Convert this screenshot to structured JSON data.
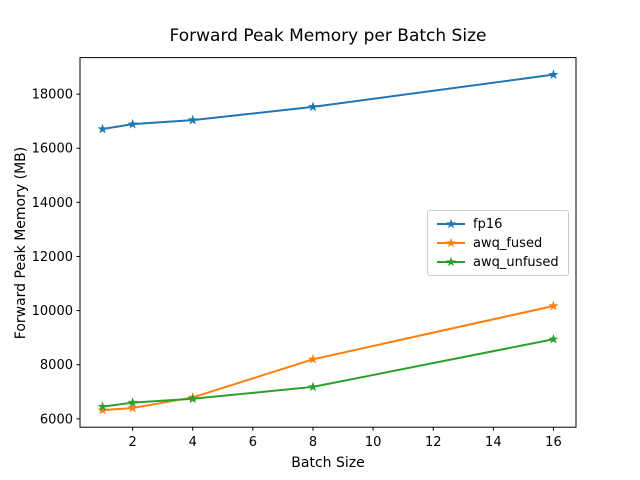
{
  "figure": {
    "background": "#ffffff",
    "text_color": "#000000",
    "spine_color": "#000000"
  },
  "chart_data": {
    "type": "line",
    "title": "Forward Peak Memory per Batch Size",
    "xlabel": "Batch Size",
    "ylabel": "Forward Peak Memory (MB)",
    "x": [
      1,
      2,
      4,
      8,
      16
    ],
    "series": [
      {
        "name": "fp16",
        "color": "#1f77b4",
        "values": [
          16710,
          16890,
          17040,
          17530,
          18720
        ]
      },
      {
        "name": "awq_fused",
        "color": "#ff7f0e",
        "values": [
          6320,
          6400,
          6790,
          8200,
          10170
        ]
      },
      {
        "name": "awq_unfused",
        "color": "#2ca02c",
        "values": [
          6450,
          6600,
          6740,
          7180,
          8940
        ]
      }
    ],
    "marker": "star",
    "xlim": [
      0.25,
      16.75
    ],
    "ylim": [
      5690,
      19350
    ],
    "xticks": [
      2,
      4,
      6,
      8,
      10,
      12,
      14,
      16
    ],
    "yticks": [
      6000,
      8000,
      10000,
      12000,
      14000,
      16000,
      18000
    ],
    "grid": false,
    "legend": {
      "position": "center-right",
      "entries": [
        "fp16",
        "awq_fused",
        "awq_unfused"
      ]
    }
  }
}
